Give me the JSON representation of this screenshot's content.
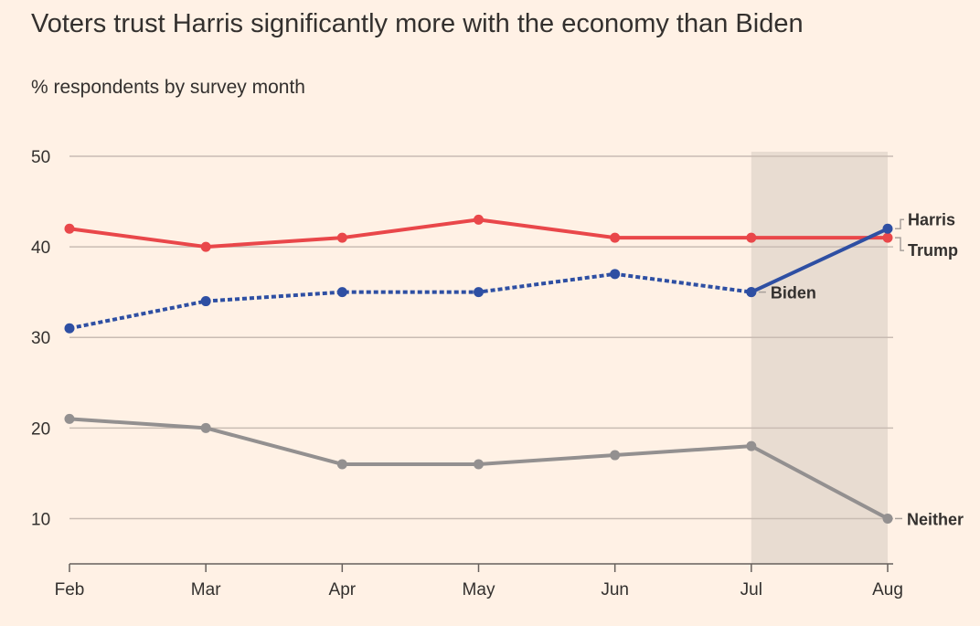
{
  "chart_data": {
    "type": "line",
    "title": "Voters trust Harris significantly more with the economy than Biden",
    "subtitle": "% respondents by survey month",
    "xlabel": "",
    "ylabel": "",
    "categories": [
      "Feb",
      "Mar",
      "Apr",
      "May",
      "Jun",
      "Jul",
      "Aug"
    ],
    "yticks": [
      10,
      20,
      30,
      40,
      50
    ],
    "ylim": [
      5,
      50.5
    ],
    "grid": true,
    "highlight_band": {
      "from": "Jul",
      "to": "Aug",
      "color": "#E8DCD1"
    },
    "series": [
      {
        "name": "Trump",
        "color": "#E9474A",
        "style": "solid",
        "values": [
          42,
          40,
          41,
          43,
          41,
          41,
          41
        ]
      },
      {
        "name": "Biden",
        "color": "#2E4FA3",
        "style": "dotted",
        "values": [
          31,
          34,
          35,
          35,
          37,
          35,
          null
        ]
      },
      {
        "name": "Harris",
        "color": "#2E4FA3",
        "style": "solid",
        "values": [
          null,
          null,
          null,
          null,
          null,
          35,
          42
        ]
      },
      {
        "name": "Neither",
        "color": "#939090",
        "style": "solid",
        "values": [
          21,
          20,
          16,
          16,
          17,
          18,
          10
        ]
      }
    ]
  }
}
